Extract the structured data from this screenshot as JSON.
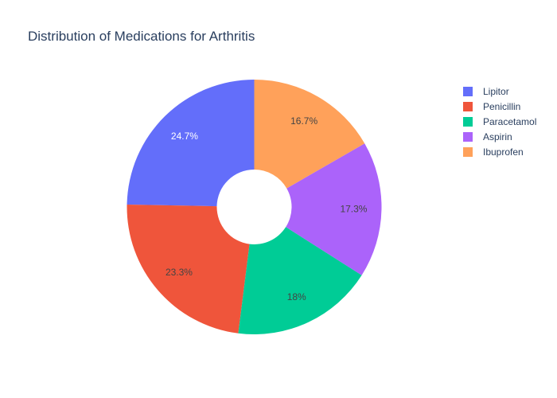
{
  "chart_data": {
    "type": "pie",
    "hole": true,
    "title": "Distribution of Medications for Arthritis",
    "labels": [
      "Lipitor",
      "Penicillin",
      "Paracetamol",
      "Aspirin",
      "Ibuprofen"
    ],
    "values": [
      24.7,
      23.3,
      18,
      17.3,
      16.7
    ],
    "value_labels": [
      "24.7%",
      "23.3%",
      "18%",
      "17.3%",
      "16.7%"
    ],
    "colors": [
      "#636efa",
      "#ef553b",
      "#00cc96",
      "#ab63fa",
      "#ffa15a"
    ],
    "slice_label_colors": [
      "#ffffff",
      "#444444",
      "#444444",
      "#444444",
      "#444444"
    ],
    "direction": "counterclockwise",
    "legend_position": "top-right"
  }
}
